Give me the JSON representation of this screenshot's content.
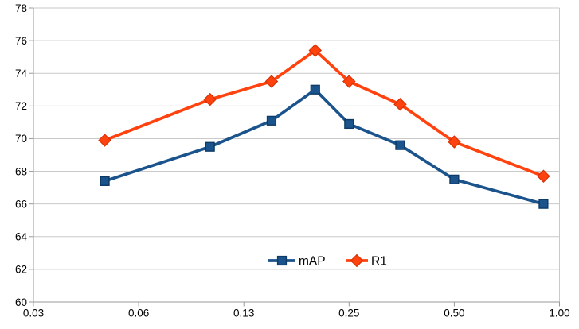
{
  "chart_data": {
    "type": "line",
    "title": "",
    "xlabel": "",
    "ylabel": "",
    "x_scale": "log2",
    "xlim": [
      0.03125,
      1.0
    ],
    "ylim": [
      60,
      78
    ],
    "grid": true,
    "legend_position": "bottom-center-inside",
    "x": [
      0.05,
      0.1,
      0.15,
      0.2,
      0.25,
      0.35,
      0.5,
      0.9
    ],
    "series": [
      {
        "name": "mAP",
        "marker": "square",
        "color": "#1b538c",
        "marker_border": "#0d3a66",
        "values": [
          67.4,
          69.5,
          71.1,
          73.0,
          70.9,
          69.6,
          67.5,
          66.0
        ]
      },
      {
        "name": "R1",
        "marker": "diamond",
        "color": "#ff420e",
        "marker_border": "#d63106",
        "values": [
          69.9,
          72.4,
          73.5,
          75.4,
          73.5,
          72.1,
          69.8,
          67.7
        ]
      }
    ],
    "x_ticks": {
      "values": [
        0.03125,
        0.0625,
        0.125,
        0.25,
        0.5,
        1.0
      ],
      "labels": [
        "0.03",
        "0.06",
        "0.13",
        "0.25",
        "0.50",
        "1.00"
      ]
    },
    "y_ticks": {
      "values": [
        60,
        62,
        64,
        66,
        68,
        70,
        72,
        74,
        76,
        78
      ],
      "labels": [
        "60",
        "62",
        "64",
        "66",
        "68",
        "70",
        "72",
        "74",
        "76",
        "78"
      ]
    }
  },
  "style": {
    "background": "#ffffff",
    "grid_color": "#c9c9c9",
    "axis_color": "#9a9a9a",
    "text_color": "#000000"
  }
}
